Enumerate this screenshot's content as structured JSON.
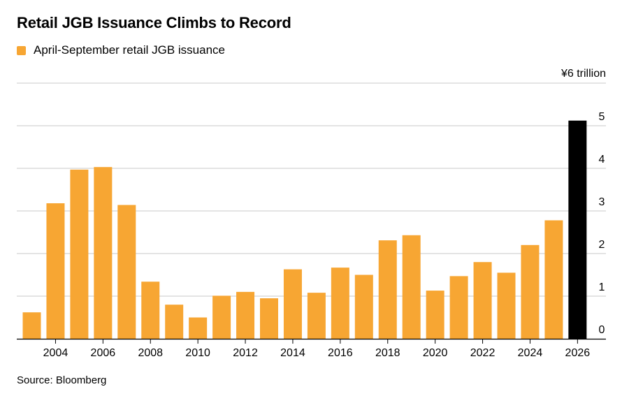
{
  "title": "Retail JGB Issuance Climbs to Record",
  "source": "Source: Bloomberg",
  "colors": {
    "accent": "#f7a633",
    "highlight": "#000000",
    "grid": "#c8c8c8"
  },
  "chart_data": {
    "type": "bar",
    "legend": {
      "position": "top-left",
      "entries": [
        "April-September retail JGB issuance"
      ]
    },
    "ylabel": "¥6 trillion",
    "ylim": [
      0,
      6
    ],
    "y_ticks": [
      0,
      1,
      2,
      3,
      4,
      5
    ],
    "x_tick_labels": [
      "2004",
      "2006",
      "2008",
      "2010",
      "2012",
      "2014",
      "2016",
      "2018",
      "2020",
      "2022",
      "2024",
      "2026"
    ],
    "grid": true,
    "categories": [
      "2003",
      "2004",
      "2005",
      "2006",
      "2007",
      "2008",
      "2009",
      "2010",
      "2011",
      "2012",
      "2013",
      "2014",
      "2015",
      "2016",
      "2017",
      "2018",
      "2019",
      "2020",
      "2021",
      "2022",
      "2023",
      "2024",
      "2025",
      "2026"
    ],
    "series": [
      {
        "name": "April-September retail JGB issuance",
        "values": [
          0.62,
          3.18,
          3.97,
          4.03,
          3.14,
          1.34,
          0.8,
          0.5,
          1.01,
          1.1,
          0.95,
          1.63,
          1.08,
          1.67,
          1.5,
          2.31,
          2.43,
          1.13,
          1.47,
          1.8,
          1.55,
          2.2,
          2.78,
          5.12
        ]
      }
    ],
    "highlight_category": "2026"
  }
}
